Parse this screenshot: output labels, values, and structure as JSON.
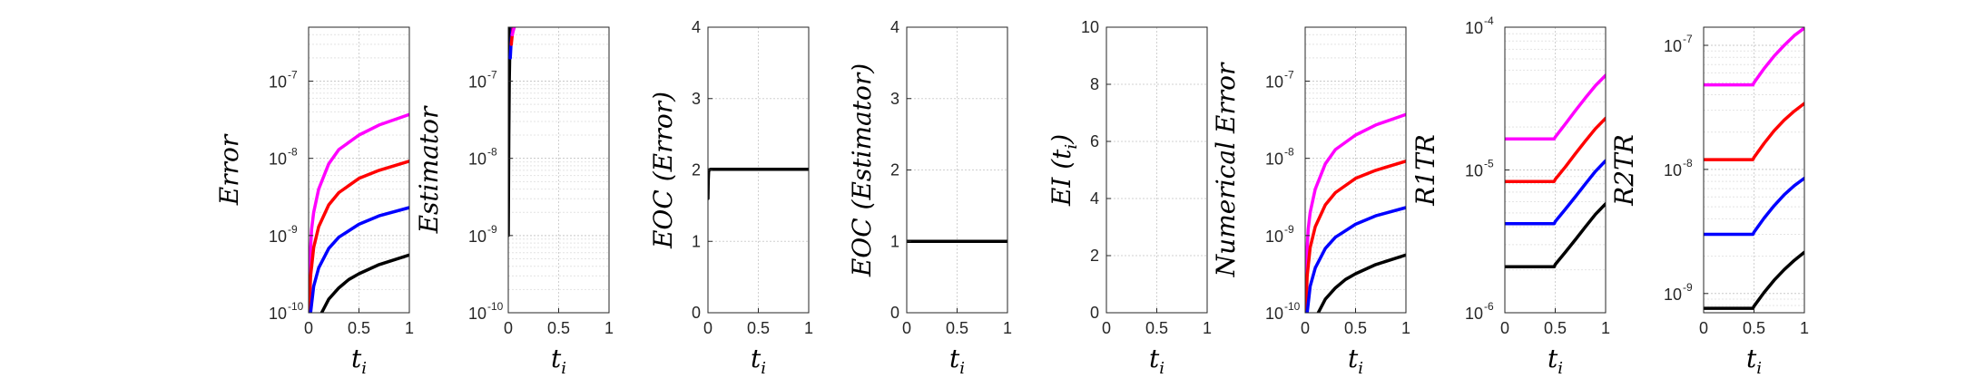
{
  "chart_data": [
    {
      "type": "line",
      "ylabel": "Error",
      "xlabel": "t",
      "xlabel_sub": "i",
      "yscale": "log",
      "ylim": [
        1e-10,
        5e-07
      ],
      "xlim": [
        0,
        1
      ],
      "xticks": [
        0,
        0.5,
        1
      ],
      "xtick_labels": [
        "0",
        "0.5",
        "1"
      ],
      "ytick_labels": [
        {
          "value": 1e-10,
          "base": "10",
          "exp": "-10"
        },
        {
          "value": 1e-09,
          "base": "10",
          "exp": "-9"
        },
        {
          "value": 1e-08,
          "base": "10",
          "exp": "-8"
        },
        {
          "value": 1e-07,
          "base": "10",
          "exp": "-7"
        }
      ],
      "grid": true,
      "series": [
        {
          "color": "#ff00ff",
          "x": [
            0.002,
            0.01,
            0.03,
            0.05,
            0.1,
            0.2,
            0.3,
            0.5,
            0.7,
            1.0
          ],
          "y": [
            1e-10,
            4e-10,
            1.2e-09,
            2e-09,
            4e-09,
            8.5e-09,
            1.3e-08,
            2e-08,
            2.7e-08,
            3.7e-08
          ]
        },
        {
          "color": "#ff0000",
          "x": [
            0.005,
            0.02,
            0.05,
            0.1,
            0.2,
            0.3,
            0.5,
            0.7,
            1.0
          ],
          "y": [
            1e-10,
            3e-10,
            7e-10,
            1.3e-09,
            2.5e-09,
            3.6e-09,
            5.5e-09,
            7e-09,
            9.2e-09
          ]
        },
        {
          "color": "#0000ff",
          "x": [
            0.02,
            0.05,
            0.1,
            0.2,
            0.3,
            0.5,
            0.7,
            1.0
          ],
          "y": [
            1e-10,
            2.2e-10,
            3.8e-10,
            6.8e-10,
            9.5e-10,
            1.4e-09,
            1.8e-09,
            2.3e-09
          ]
        },
        {
          "color": "#000000",
          "x": [
            0.13,
            0.2,
            0.3,
            0.4,
            0.5,
            0.7,
            1.0
          ],
          "y": [
            1e-10,
            1.5e-10,
            2.1e-10,
            2.7e-10,
            3.2e-10,
            4.2e-10,
            5.6e-10
          ]
        }
      ]
    },
    {
      "type": "line",
      "ylabel": "Estimator",
      "xlabel": "t",
      "xlabel_sub": "i",
      "yscale": "log",
      "ylim": [
        1e-10,
        5e-07
      ],
      "xlim": [
        0,
        1
      ],
      "xticks": [
        0,
        0.5,
        1
      ],
      "xtick_labels": [
        "0",
        "0.5",
        "1"
      ],
      "ytick_labels": [
        {
          "value": 1e-10,
          "base": "10",
          "exp": "-10"
        },
        {
          "value": 1e-09,
          "base": "10",
          "exp": "-9"
        },
        {
          "value": 1e-08,
          "base": "10",
          "exp": "-8"
        },
        {
          "value": 1e-07,
          "base": "10",
          "exp": "-7"
        }
      ],
      "grid": true,
      "series": [
        {
          "color": "#000000",
          "x": [
            0.0,
            0.005,
            0.01,
            0.015,
            0.02
          ],
          "y": [
            1e-09,
            2e-08,
            1e-07,
            2.5e-07,
            5e-07
          ]
        },
        {
          "color": "#0000ff",
          "x": [
            0.02,
            0.03,
            0.04
          ],
          "y": [
            2e-07,
            3.5e-07,
            5e-07
          ]
        },
        {
          "color": "#ff0000",
          "x": [
            0.03,
            0.04,
            0.05
          ],
          "y": [
            3e-07,
            4e-07,
            5e-07
          ]
        },
        {
          "color": "#ff00ff",
          "x": [
            0.04,
            0.05,
            0.06
          ],
          "y": [
            4e-07,
            4.5e-07,
            5e-07
          ]
        }
      ]
    },
    {
      "type": "line",
      "ylabel": "EOC (Error)",
      "xlabel": "t",
      "xlabel_sub": "i",
      "yscale": "linear",
      "ylim": [
        0,
        4
      ],
      "xlim": [
        0,
        1
      ],
      "xticks": [
        0,
        0.5,
        1
      ],
      "xtick_labels": [
        "0",
        "0.5",
        "1"
      ],
      "yticks": [
        0,
        1,
        2,
        3,
        4
      ],
      "ytick_labels": [
        "0",
        "1",
        "2",
        "3",
        "4"
      ],
      "grid": true,
      "series": [
        {
          "color": "#000000",
          "x": [
            0.0,
            0.003,
            0.006,
            0.01,
            0.03,
            0.1,
            0.5,
            1.0
          ],
          "y": [
            1.6,
            1.85,
            1.97,
            2.0,
            2.01,
            2.01,
            2.01,
            2.01
          ]
        }
      ]
    },
    {
      "type": "line",
      "ylabel": "EOC (Estimator)",
      "xlabel": "t",
      "xlabel_sub": "i",
      "yscale": "linear",
      "ylim": [
        0,
        4
      ],
      "xlim": [
        0,
        1
      ],
      "xticks": [
        0,
        0.5,
        1
      ],
      "xtick_labels": [
        "0",
        "0.5",
        "1"
      ],
      "yticks": [
        0,
        1,
        2,
        3,
        4
      ],
      "ytick_labels": [
        "0",
        "1",
        "2",
        "3",
        "4"
      ],
      "grid": true,
      "series": [
        {
          "color": "#000000",
          "x": [
            0.0,
            1.0
          ],
          "y": [
            1.0,
            1.0
          ]
        }
      ]
    },
    {
      "type": "line",
      "ylabel": "EI (t",
      "ylabel_sub": "i",
      "ylabel_tail": ")",
      "xlabel": "t",
      "xlabel_sub": "i",
      "yscale": "linear",
      "ylim": [
        0,
        10
      ],
      "xlim": [
        0,
        1
      ],
      "xticks": [
        0,
        0.5,
        1
      ],
      "xtick_labels": [
        "0",
        "0.5",
        "1"
      ],
      "yticks": [
        0,
        2,
        4,
        6,
        8,
        10
      ],
      "ytick_labels": [
        "0",
        "2",
        "4",
        "6",
        "8",
        "10"
      ],
      "grid": true,
      "series": []
    },
    {
      "type": "line",
      "ylabel": "Numerical Error",
      "xlabel": "t",
      "xlabel_sub": "i",
      "yscale": "log",
      "ylim": [
        1e-10,
        5e-07
      ],
      "xlim": [
        0,
        1
      ],
      "xticks": [
        0,
        0.5,
        1
      ],
      "xtick_labels": [
        "0",
        "0.5",
        "1"
      ],
      "ytick_labels": [
        {
          "value": 1e-10,
          "base": "10",
          "exp": "-10"
        },
        {
          "value": 1e-09,
          "base": "10",
          "exp": "-9"
        },
        {
          "value": 1e-08,
          "base": "10",
          "exp": "-8"
        },
        {
          "value": 1e-07,
          "base": "10",
          "exp": "-7"
        }
      ],
      "grid": true,
      "series": [
        {
          "color": "#ff00ff",
          "x": [
            0.002,
            0.01,
            0.03,
            0.05,
            0.1,
            0.2,
            0.3,
            0.5,
            0.7,
            1.0
          ],
          "y": [
            1e-10,
            4e-10,
            1.2e-09,
            2e-09,
            4e-09,
            8.5e-09,
            1.3e-08,
            2e-08,
            2.7e-08,
            3.7e-08
          ]
        },
        {
          "color": "#ff0000",
          "x": [
            0.005,
            0.02,
            0.05,
            0.1,
            0.2,
            0.3,
            0.5,
            0.7,
            1.0
          ],
          "y": [
            1e-10,
            3e-10,
            7e-10,
            1.3e-09,
            2.5e-09,
            3.6e-09,
            5.5e-09,
            7e-09,
            9.2e-09
          ]
        },
        {
          "color": "#0000ff",
          "x": [
            0.02,
            0.05,
            0.1,
            0.2,
            0.3,
            0.5,
            0.7,
            1.0
          ],
          "y": [
            1e-10,
            2.2e-10,
            3.8e-10,
            6.8e-10,
            9.5e-10,
            1.4e-09,
            1.8e-09,
            2.3e-09
          ]
        },
        {
          "color": "#000000",
          "x": [
            0.13,
            0.2,
            0.3,
            0.4,
            0.5,
            0.7,
            1.0
          ],
          "y": [
            1e-10,
            1.5e-10,
            2.1e-10,
            2.7e-10,
            3.2e-10,
            4.2e-10,
            5.6e-10
          ]
        }
      ]
    },
    {
      "type": "line",
      "ylabel": "R1TR",
      "xlabel": "t",
      "xlabel_sub": "i",
      "yscale": "log",
      "ylim": [
        1e-06,
        0.0001
      ],
      "xlim": [
        0,
        1
      ],
      "xticks": [
        0,
        0.5,
        1
      ],
      "xtick_labels": [
        "0",
        "0.5",
        "1"
      ],
      "ytick_labels": [
        {
          "value": 1e-06,
          "base": "10",
          "exp": "-6"
        },
        {
          "value": 1e-05,
          "base": "10",
          "exp": "-5"
        },
        {
          "value": 0.0001,
          "base": "10",
          "exp": "-4"
        }
      ],
      "grid": true,
      "series": [
        {
          "color": "#ff00ff",
          "x": [
            0.0,
            0.49,
            0.5,
            0.6,
            0.7,
            0.8,
            0.9,
            1.0
          ],
          "y": [
            1.65e-05,
            1.65e-05,
            1.7e-05,
            2.1e-05,
            2.6e-05,
            3.2e-05,
            3.9e-05,
            4.6e-05
          ]
        },
        {
          "color": "#ff0000",
          "x": [
            0.0,
            0.49,
            0.5,
            0.6,
            0.7,
            0.8,
            0.9,
            1.0
          ],
          "y": [
            8.3e-06,
            8.3e-06,
            8.6e-06,
            1.05e-05,
            1.3e-05,
            1.6e-05,
            1.95e-05,
            2.3e-05
          ]
        },
        {
          "color": "#0000ff",
          "x": [
            0.0,
            0.49,
            0.5,
            0.6,
            0.7,
            0.8,
            0.9,
            1.0
          ],
          "y": [
            4.2e-06,
            4.2e-06,
            4.35e-06,
            5.3e-06,
            6.5e-06,
            8e-06,
            9.8e-06,
            1.16e-05
          ]
        },
        {
          "color": "#000000",
          "x": [
            0.0,
            0.49,
            0.5,
            0.6,
            0.7,
            0.8,
            0.9,
            1.0
          ],
          "y": [
            2.1e-06,
            2.1e-06,
            2.18e-06,
            2.65e-06,
            3.25e-06,
            4e-06,
            4.9e-06,
            5.8e-06
          ]
        }
      ]
    },
    {
      "type": "line",
      "ylabel": "R2TR",
      "xlabel": "t",
      "xlabel_sub": "i",
      "yscale": "log",
      "ylim": [
        7e-10,
        1.4e-07
      ],
      "xlim": [
        0,
        1
      ],
      "xticks": [
        0,
        0.5,
        1
      ],
      "xtick_labels": [
        "0",
        "0.5",
        "1"
      ],
      "ytick_labels": [
        {
          "value": 1e-09,
          "base": "10",
          "exp": "-9"
        },
        {
          "value": 1e-08,
          "base": "10",
          "exp": "-8"
        },
        {
          "value": 1e-07,
          "base": "10",
          "exp": "-7"
        }
      ],
      "grid": true,
      "series": [
        {
          "color": "#ff00ff",
          "x": [
            0.0,
            0.49,
            0.5,
            0.6,
            0.7,
            0.8,
            0.9,
            1.0
          ],
          "y": [
            4.8e-08,
            4.8e-08,
            5e-08,
            6.5e-08,
            8.2e-08,
            1e-07,
            1.2e-07,
            1.38e-07
          ]
        },
        {
          "color": "#ff0000",
          "x": [
            0.0,
            0.49,
            0.5,
            0.6,
            0.7,
            0.8,
            0.9,
            1.0
          ],
          "y": [
            1.2e-08,
            1.2e-08,
            1.25e-08,
            1.62e-08,
            2.05e-08,
            2.5e-08,
            2.95e-08,
            3.4e-08
          ]
        },
        {
          "color": "#0000ff",
          "x": [
            0.0,
            0.49,
            0.5,
            0.6,
            0.7,
            0.8,
            0.9,
            1.0
          ],
          "y": [
            3e-09,
            3e-09,
            3.12e-09,
            4.05e-09,
            5.1e-09,
            6.25e-09,
            7.4e-09,
            8.5e-09
          ]
        },
        {
          "color": "#000000",
          "x": [
            0.0,
            0.49,
            0.5,
            0.6,
            0.7,
            0.8,
            0.9,
            1.0
          ],
          "y": [
            7.6e-10,
            7.6e-10,
            7.9e-10,
            1.02e-09,
            1.28e-09,
            1.56e-09,
            1.85e-09,
            2.15e-09
          ]
        }
      ]
    }
  ]
}
